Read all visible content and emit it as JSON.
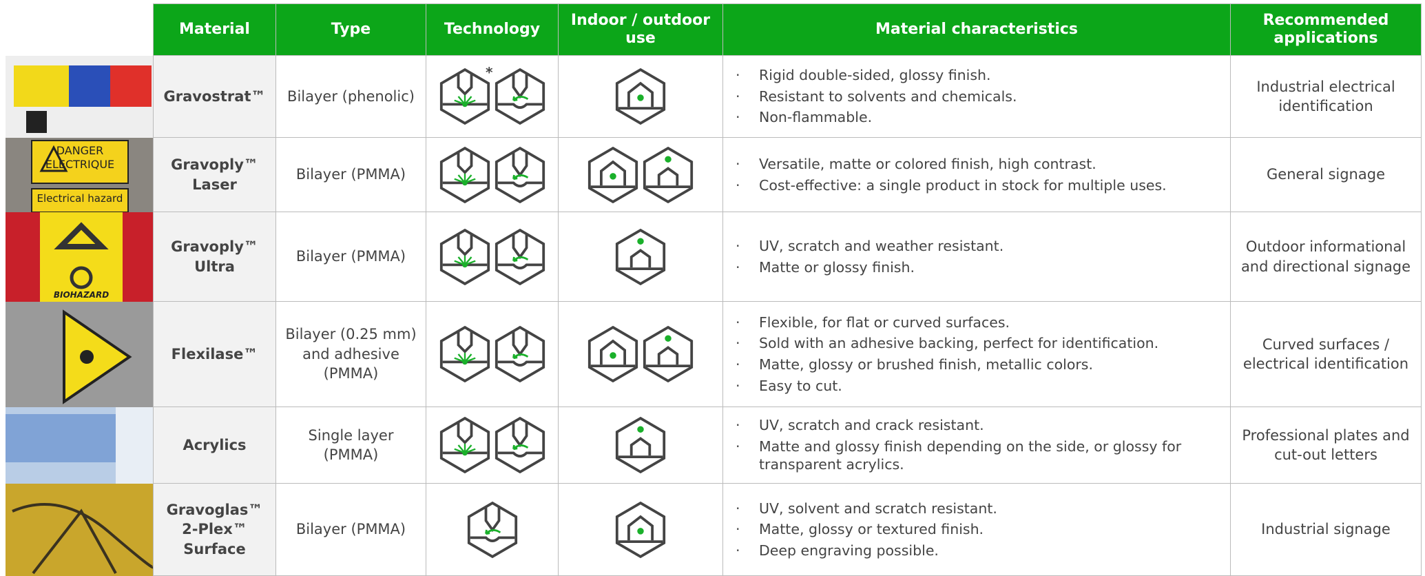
{
  "table": {
    "headers": [
      "Material",
      "Type",
      "Technology",
      "Indoor / outdoor use",
      "Material characteristics",
      "Recommended applications"
    ],
    "rows": [
      {
        "material": "Gravostrat™",
        "type": "Bilayer (phenolic)",
        "technology_mark": "*",
        "characteristics": [
          "Rigid double-sided, glossy finish.",
          "Resistant to solvents and chemicals.",
          "Non-flammable."
        ],
        "applications": "Industrial electrical identification"
      },
      {
        "material": "Gravoply™ Laser",
        "type": "Bilayer (PMMA)",
        "photo_text": [
          "DANGER",
          "ELECTRIQUE",
          "Electrical hazard"
        ],
        "characteristics": [
          "Versatile, matte or colored finish, high contrast.",
          "Cost-effective: a single product in stock for multiple uses."
        ],
        "applications": "General signage"
      },
      {
        "material": "Gravoply™ Ultra",
        "type": "Bilayer (PMMA)",
        "photo_text": [
          "BIOHAZARD"
        ],
        "characteristics": [
          "UV, scratch and weather resistant.",
          "Matte or glossy finish."
        ],
        "applications": "Outdoor informational and directional signage"
      },
      {
        "material": "Flexilase™",
        "type": "Bilayer (0.25 mm) and adhesive (PMMA)",
        "characteristics": [
          "Flexible, for flat or curved surfaces.",
          "Sold with an adhesive backing, perfect for identification.",
          "Matte, glossy or brushed finish, metallic colors.",
          "Easy to cut."
        ],
        "applications": "Curved surfaces / electrical identification"
      },
      {
        "material": "Acrylics",
        "type": "Single layer (PMMA)",
        "characteristics": [
          "UV, scratch and crack resistant.",
          "Matte and glossy finish depending on the side, or glossy for transparent acrylics."
        ],
        "applications": "Professional plates and cut-out letters"
      },
      {
        "material": "Gravoglas™ 2-Plex™ Surface",
        "type": "Bilayer (PMMA)",
        "characteristics": [
          "UV, solvent and scratch resistant.",
          "Matte, glossy or textured finish.",
          "Deep engraving possible."
        ],
        "applications": "Industrial signage"
      }
    ]
  }
}
